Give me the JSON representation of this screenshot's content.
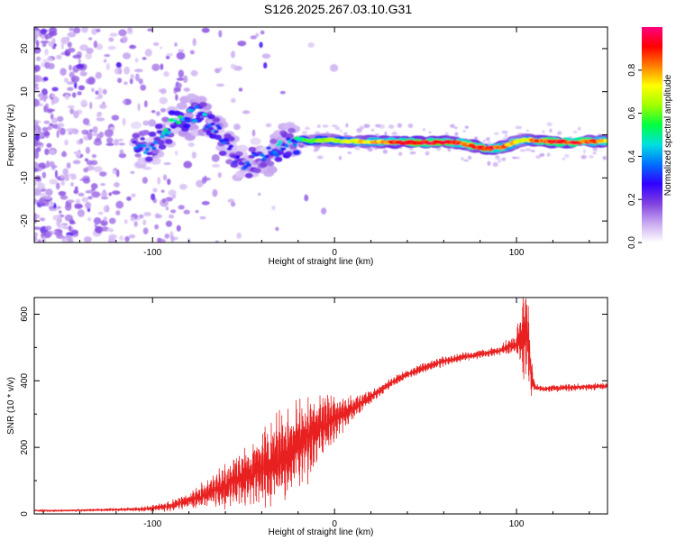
{
  "title": "S126.2025.267.03.10.G31",
  "chart_data": [
    {
      "type": "heatmap",
      "xlabel": "Height of straight line (km)",
      "ylabel": "Frequency (Hz)",
      "xlim": [
        -165,
        150
      ],
      "ylim": [
        -25,
        25
      ],
      "xticks": [
        -100,
        0,
        100
      ],
      "xtick_labels": [
        "-100",
        "0",
        "100"
      ],
      "yticks": [
        -20,
        -10,
        0,
        10,
        20
      ],
      "ytick_labels": [
        "-20",
        "-10",
        "0",
        "10",
        "20"
      ],
      "colorbar": {
        "label": "Normalized spectral amplitude",
        "range": [
          0,
          1
        ],
        "ticks": [
          0.0,
          0.2,
          0.4,
          0.6,
          0.8
        ],
        "tick_labels": [
          "0.0",
          "0.2",
          "0.4",
          "0.6",
          "0.8"
        ],
        "colors": [
          "#ffffff",
          "#c8a8f0",
          "#8040e0",
          "#3000ff",
          "#0070ff",
          "#00e0e0",
          "#00ff40",
          "#a0ff00",
          "#ffff00",
          "#ff8000",
          "#ff0000",
          "#ff0080"
        ]
      },
      "ridge": {
        "x": [
          -165,
          -140,
          -130,
          -120,
          -110,
          -100,
          -95,
          -90,
          -85,
          -80,
          -75,
          -70,
          -65,
          -60,
          -55,
          -50,
          -45,
          -40,
          -35,
          -30,
          -25,
          -20,
          -15,
          -10,
          -5,
          0,
          10,
          20,
          30,
          40,
          50,
          60,
          70,
          75,
          80,
          85,
          90,
          95,
          100,
          105,
          110,
          115,
          120,
          130,
          140,
          150
        ],
        "frequency": [
          0,
          3,
          4,
          1,
          -2,
          -3,
          0,
          2,
          3,
          4,
          5,
          3,
          1,
          -2,
          -5,
          -7,
          -6,
          -5,
          -4,
          -3,
          -2,
          -1,
          -1.5,
          -1.3,
          -1.2,
          -1.3,
          -1.5,
          -1.6,
          -1.7,
          -1.8,
          -1.8,
          -1.7,
          -1.9,
          -2.5,
          -3.0,
          -3.2,
          -3.0,
          -2.5,
          -1.5,
          -1.2,
          -1.3,
          -1.4,
          -1.6,
          -1.7,
          -1.6,
          -1.5
        ],
        "amplitude": [
          0.2,
          0.25,
          0.3,
          0.3,
          0.3,
          0.35,
          0.4,
          0.45,
          0.45,
          0.4,
          0.4,
          0.45,
          0.35,
          0.35,
          0.3,
          0.3,
          0.3,
          0.3,
          0.35,
          0.4,
          0.4,
          0.5,
          0.55,
          0.6,
          0.6,
          0.65,
          0.7,
          0.75,
          0.85,
          0.95,
          0.95,
          0.9,
          0.85,
          0.85,
          0.9,
          0.9,
          0.85,
          0.8,
          0.75,
          0.7,
          0.8,
          0.85,
          0.9,
          0.9,
          0.85,
          0.8
        ]
      }
    },
    {
      "type": "line",
      "xlabel": "Height of straight line (km)",
      "ylabel": "SNR (10 * v/v)",
      "xlim": [
        -165,
        150
      ],
      "ylim": [
        0,
        650
      ],
      "xticks": [
        -100,
        0,
        100
      ],
      "xtick_labels": [
        "-100",
        "0",
        "100"
      ],
      "yticks": [
        0,
        200,
        400,
        600
      ],
      "ytick_labels": [
        "0",
        "200",
        "400",
        "600"
      ],
      "color": "#e82020",
      "series": [
        {
          "name": "SNR",
          "x": [
            -165,
            -150,
            -140,
            -130,
            -120,
            -110,
            -100,
            -90,
            -80,
            -70,
            -60,
            -50,
            -40,
            -30,
            -20,
            -10,
            -5,
            0,
            5,
            10,
            20,
            30,
            40,
            50,
            60,
            70,
            80,
            90,
            95,
            100,
            103,
            106,
            108,
            110,
            115,
            120,
            130,
            140,
            150
          ],
          "y": [
            10,
            10,
            11,
            12,
            13,
            14,
            17,
            25,
            40,
            60,
            85,
            110,
            140,
            170,
            210,
            250,
            270,
            285,
            300,
            320,
            350,
            390,
            420,
            440,
            460,
            470,
            480,
            490,
            500,
            510,
            530,
            560,
            420,
            380,
            375,
            378,
            380,
            382,
            385
          ],
          "noise": [
            3,
            3,
            4,
            4,
            5,
            6,
            10,
            15,
            25,
            40,
            60,
            80,
            100,
            120,
            120,
            110,
            90,
            60,
            45,
            35,
            20,
            15,
            15,
            15,
            15,
            12,
            12,
            12,
            20,
            30,
            120,
            200,
            60,
            10,
            10,
            10,
            10,
            10,
            10
          ]
        }
      ]
    }
  ]
}
